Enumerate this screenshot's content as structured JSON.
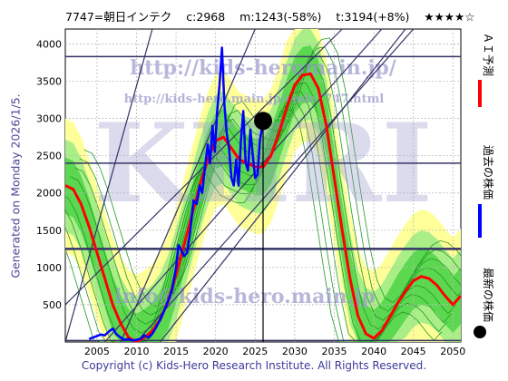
{
  "header": {
    "code_name": "7747=朝日インテク",
    "current": "c:2968",
    "min": "m:1243(-58%)",
    "target": "t:3194(+8%)",
    "rating": "★★★★☆"
  },
  "side_label": "Generated on Monday 2026/1/5.",
  "footer": "Copyright (c) Kids-Hero Research Institute. All Rights Reserved.",
  "watermarks": {
    "url_main": "http://kids-heromain.jp/",
    "url_code": "http://kids-hero.main.jp/code7747.html",
    "email": "info@kids-hero.main.jp",
    "big": "KHRI"
  },
  "legend": [
    {
      "label": "ＡＩ予測",
      "color": "#ff0000"
    },
    {
      "label": "過去の株価",
      "color": "#0000ff"
    },
    {
      "label": "最新の株価",
      "color": "#000000"
    }
  ],
  "colors": {
    "band_green": "#33cc33",
    "band_lightgreen": "#aaee88",
    "band_yellow": "#ffff99",
    "hline": "#333366"
  },
  "chart_data": {
    "type": "line",
    "title": "",
    "xlabel": "",
    "ylabel": "",
    "xlim": [
      2001,
      2051
    ],
    "ylim": [
      0,
      4200
    ],
    "x_ticks": [
      2005,
      2010,
      2015,
      2020,
      2025,
      2030,
      2035,
      2040,
      2045,
      2050
    ],
    "y_ticks": [
      500,
      1000,
      1500,
      2000,
      2500,
      3000,
      3500,
      4000
    ],
    "grid": true,
    "horizontal_lines": [
      3830,
      2400,
      1250,
      20
    ],
    "latest_point": {
      "x": 2026.0,
      "y": 2968
    },
    "vertical_marker_x": 2026.0,
    "series": [
      {
        "name": "ＡＩ予測",
        "x": [
          2001,
          2002,
          2003,
          2004,
          2005,
          2006,
          2007,
          2008,
          2009,
          2010,
          2011,
          2012,
          2013,
          2014,
          2015,
          2016,
          2017,
          2018,
          2019,
          2020,
          2021,
          2022,
          2023,
          2024,
          2025,
          2026,
          2027,
          2028,
          2029,
          2030,
          2031,
          2032,
          2033,
          2034,
          2035,
          2036,
          2037,
          2038,
          2039,
          2040,
          2041,
          2042,
          2043,
          2044,
          2045,
          2046,
          2047,
          2048,
          2049,
          2050,
          2051
        ],
        "values": [
          2100,
          2050,
          1850,
          1550,
          1200,
          850,
          500,
          250,
          60,
          0,
          60,
          150,
          300,
          550,
          900,
          1300,
          1700,
          2100,
          2450,
          2700,
          2750,
          2600,
          2450,
          2400,
          2350,
          2350,
          2500,
          2800,
          3150,
          3450,
          3580,
          3600,
          3400,
          2900,
          2200,
          1500,
          850,
          350,
          110,
          50,
          150,
          330,
          520,
          680,
          820,
          880,
          850,
          760,
          620,
          500,
          620
        ]
      },
      {
        "name": "過去の株価",
        "x": [
          2004.0,
          2004.5,
          2005.0,
          2005.5,
          2006.0,
          2006.5,
          2007.0,
          2007.5,
          2008.0,
          2008.5,
          2009.0,
          2009.5,
          2010.0,
          2010.5,
          2011.0,
          2011.5,
          2012.0,
          2012.5,
          2013.0,
          2013.5,
          2014.0,
          2014.5,
          2015.0,
          2015.3,
          2015.6,
          2016.0,
          2016.4,
          2016.8,
          2017.2,
          2017.6,
          2018.0,
          2018.3,
          2018.6,
          2019.0,
          2019.3,
          2019.6,
          2019.9,
          2020.2,
          2020.5,
          2020.8,
          2021.1,
          2021.4,
          2021.7,
          2022.0,
          2022.3,
          2022.6,
          2022.9,
          2023.2,
          2023.5,
          2023.8,
          2024.1,
          2024.4,
          2024.7,
          2025.0,
          2025.3,
          2025.6,
          2026.0
        ],
        "values": [
          40,
          60,
          80,
          100,
          90,
          140,
          180,
          100,
          60,
          30,
          40,
          20,
          30,
          40,
          90,
          60,
          110,
          200,
          300,
          420,
          550,
          700,
          1000,
          1300,
          1250,
          1150,
          1200,
          1500,
          1900,
          1850,
          2100,
          2000,
          2300,
          2650,
          2400,
          2900,
          2550,
          3100,
          3450,
          3950,
          3200,
          2800,
          2600,
          2200,
          2100,
          2450,
          2100,
          2700,
          3100,
          2400,
          2300,
          2850,
          2500,
          2200,
          2250,
          2700,
          2968
        ]
      }
    ],
    "channel_lines": [
      {
        "x": [
          2001,
          2036
        ],
        "y": [
          500,
          4200
        ]
      },
      {
        "x": [
          2006,
          2041
        ],
        "y": [
          0,
          4200
        ]
      },
      {
        "x": [
          2010,
          2045
        ],
        "y": [
          0,
          4200
        ]
      },
      {
        "x": [
          2013,
          2044
        ],
        "y": [
          0,
          4200
        ]
      },
      {
        "x": [
          2001,
          2012
        ],
        "y": [
          0,
          4200
        ]
      },
      {
        "x": [
          2008,
          2025
        ],
        "y": [
          0,
          4200
        ]
      }
    ]
  }
}
